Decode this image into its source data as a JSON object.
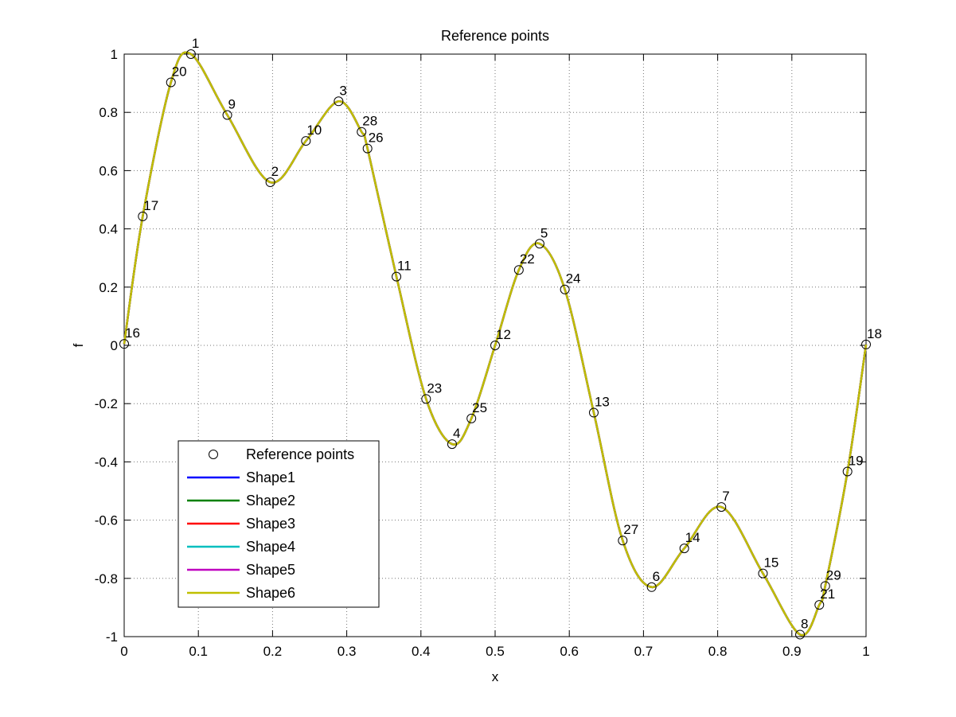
{
  "chart_data": {
    "type": "line",
    "title": "Reference points",
    "xlabel": "x",
    "ylabel": "f",
    "xlim": [
      0,
      1
    ],
    "ylim": [
      -1,
      1
    ],
    "xticks": [
      0,
      0.1,
      0.2,
      0.3,
      0.4,
      0.5,
      0.6,
      0.7,
      0.8,
      0.9,
      1
    ],
    "xtick_labels": [
      "0",
      "0.1",
      "0.2",
      "0.3",
      "0.4",
      "0.5",
      "0.6",
      "0.7",
      "0.8",
      "0.9",
      "1"
    ],
    "yticks": [
      -1,
      -0.8,
      -0.6,
      -0.4,
      -0.2,
      0,
      0.2,
      0.4,
      0.6,
      0.8,
      1
    ],
    "ytick_labels": [
      "-1",
      "-0.8",
      "-0.6",
      "-0.4",
      "-0.2",
      "0",
      "0.2",
      "0.4",
      "0.6",
      "0.8",
      "1"
    ],
    "grid": true,
    "legend_position": "lower-left",
    "reference_points": {
      "name": "Reference points",
      "marker": "circle",
      "points": [
        {
          "label": "1",
          "x": 0.09,
          "y": 1.0
        },
        {
          "label": "2",
          "x": 0.197,
          "y": 0.56
        },
        {
          "label": "3",
          "x": 0.289,
          "y": 0.838
        },
        {
          "label": "4",
          "x": 0.442,
          "y": -0.339
        },
        {
          "label": "5",
          "x": 0.56,
          "y": 0.349
        },
        {
          "label": "6",
          "x": 0.711,
          "y": -0.83
        },
        {
          "label": "7",
          "x": 0.805,
          "y": -0.555
        },
        {
          "label": "8",
          "x": 0.911,
          "y": -0.993
        },
        {
          "label": "9",
          "x": 0.139,
          "y": 0.791
        },
        {
          "label": "10",
          "x": 0.245,
          "y": 0.702
        },
        {
          "label": "11",
          "x": 0.367,
          "y": 0.236
        },
        {
          "label": "12",
          "x": 0.5,
          "y": 0.0
        },
        {
          "label": "13",
          "x": 0.633,
          "y": -0.231
        },
        {
          "label": "14",
          "x": 0.755,
          "y": -0.697
        },
        {
          "label": "15",
          "x": 0.861,
          "y": -0.783
        },
        {
          "label": "16",
          "x": 0.0,
          "y": 0.005
        },
        {
          "label": "17",
          "x": 0.025,
          "y": 0.443
        },
        {
          "label": "18",
          "x": 1.0,
          "y": 0.003
        },
        {
          "label": "19",
          "x": 0.975,
          "y": -0.433
        },
        {
          "label": "20",
          "x": 0.063,
          "y": 0.903
        },
        {
          "label": "21",
          "x": 0.937,
          "y": -0.891
        },
        {
          "label": "22",
          "x": 0.532,
          "y": 0.259
        },
        {
          "label": "23",
          "x": 0.407,
          "y": -0.184
        },
        {
          "label": "24",
          "x": 0.594,
          "y": 0.192
        },
        {
          "label": "25",
          "x": 0.468,
          "y": -0.251
        },
        {
          "label": "26",
          "x": 0.328,
          "y": 0.676
        },
        {
          "label": "27",
          "x": 0.672,
          "y": -0.67
        },
        {
          "label": "28",
          "x": 0.32,
          "y": 0.733
        },
        {
          "label": "29",
          "x": 0.945,
          "y": -0.826
        }
      ]
    },
    "series": [
      {
        "name": "Shape1",
        "color": "#0000ff"
      },
      {
        "name": "Shape2",
        "color": "#008000"
      },
      {
        "name": "Shape3",
        "color": "#ff0000"
      },
      {
        "name": "Shape4",
        "color": "#00bfbf"
      },
      {
        "name": "Shape5",
        "color": "#bf00bf"
      },
      {
        "name": "Shape6",
        "color": "#bfbf00"
      }
    ]
  }
}
